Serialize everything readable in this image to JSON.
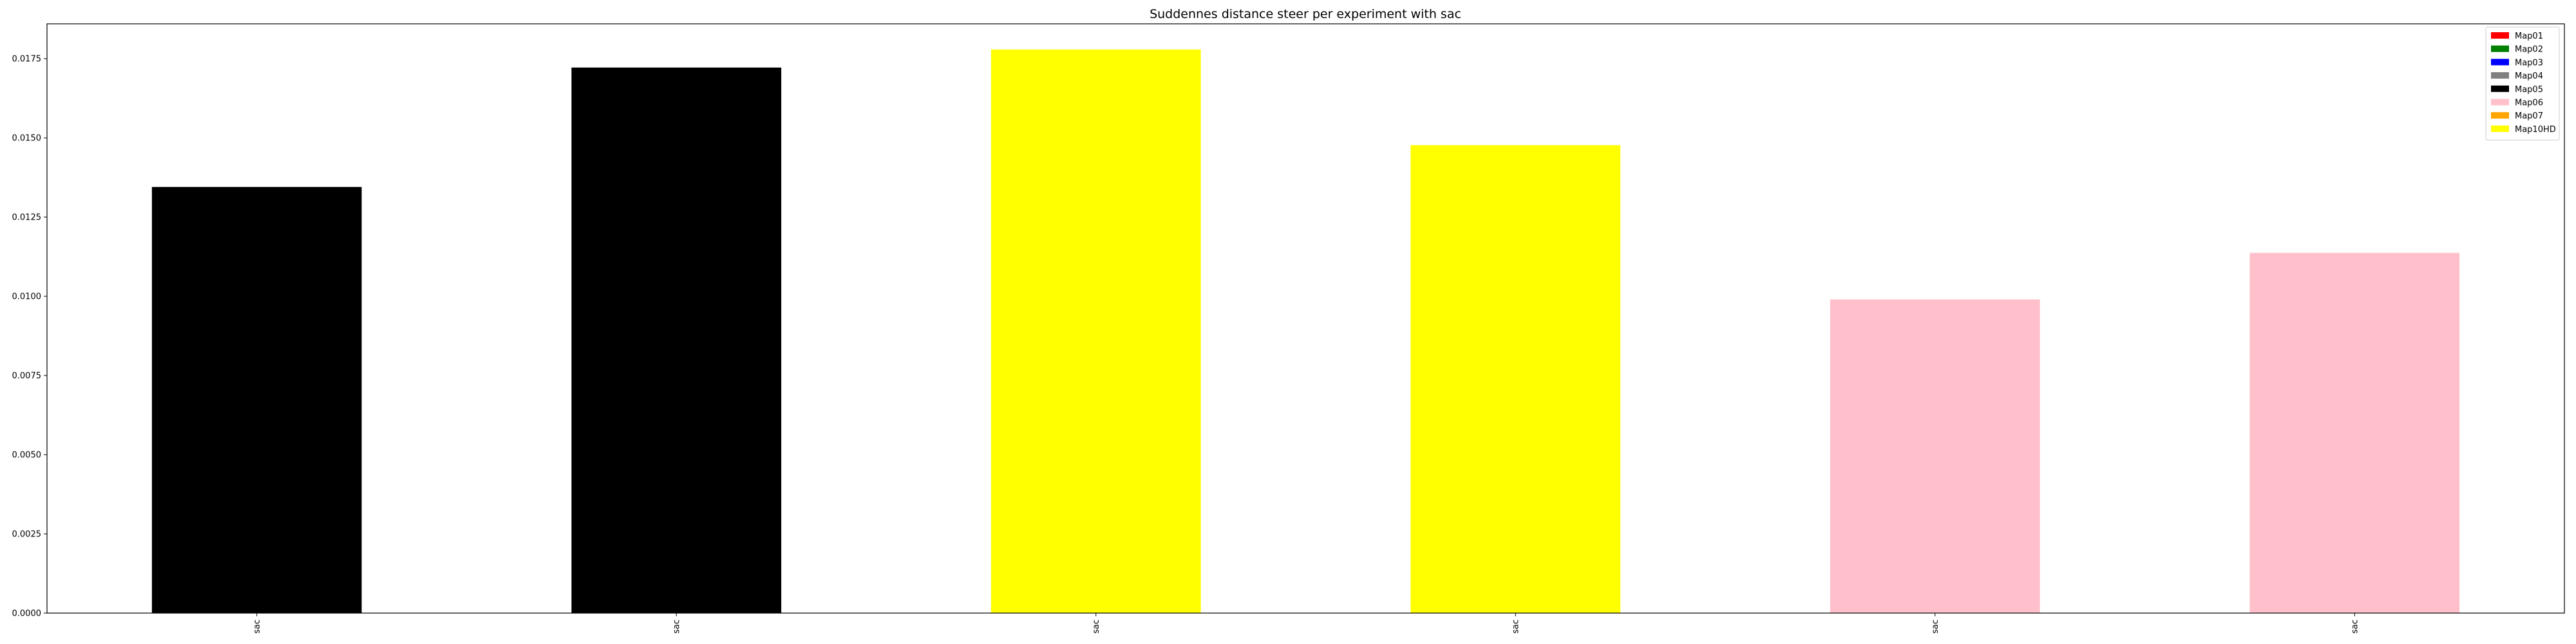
{
  "chart_data": {
    "type": "bar",
    "title": "Suddennes distance steer per experiment with sac",
    "xlabel": "",
    "ylabel": "",
    "categories": [
      "sac",
      "sac",
      "sac",
      "sac",
      "sac",
      "sac"
    ],
    "values": [
      0.01345,
      0.01722,
      0.01779,
      0.01477,
      0.0099,
      0.01137
    ],
    "bar_colors": [
      "#000000",
      "#000000",
      "#ffff00",
      "#ffff00",
      "#ffc0cb",
      "#ffc0cb"
    ],
    "ylim": [
      0,
      0.0186
    ],
    "yticks": [
      0.0,
      0.0025,
      0.005,
      0.0075,
      0.01,
      0.0125,
      0.015,
      0.0175
    ],
    "ytick_labels": [
      "0.0000",
      "0.0025",
      "0.0050",
      "0.0075",
      "0.0100",
      "0.0125",
      "0.0150",
      "0.0175"
    ],
    "grid": false,
    "legend_position": "top-right",
    "legend": [
      {
        "label": "Map01",
        "color": "#ff0000"
      },
      {
        "label": "Map02",
        "color": "#008000"
      },
      {
        "label": "Map03",
        "color": "#0000ff"
      },
      {
        "label": "Map04",
        "color": "#808080"
      },
      {
        "label": "Map05",
        "color": "#000000"
      },
      {
        "label": "Map06",
        "color": "#ffc0cb"
      },
      {
        "label": "Map07",
        "color": "#ffa500"
      },
      {
        "label": "Map10HD",
        "color": "#ffff00"
      }
    ]
  }
}
